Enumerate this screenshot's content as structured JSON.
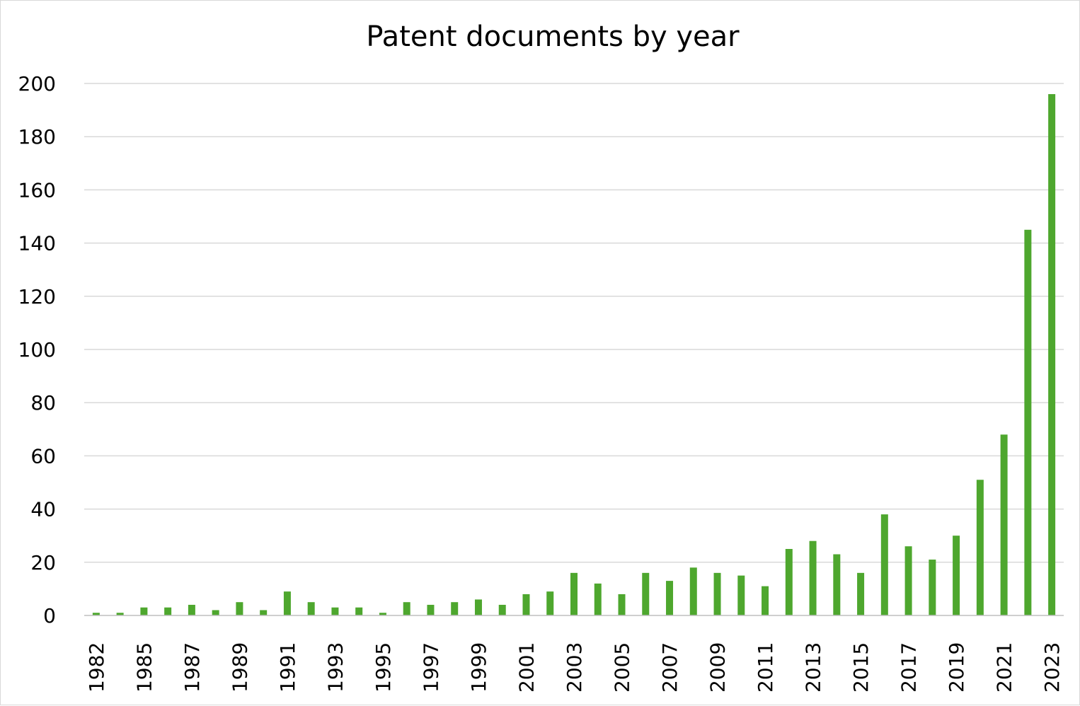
{
  "chart_data": {
    "type": "bar",
    "title": "Patent documents by year",
    "xlabel": "",
    "ylabel": "",
    "ylim": [
      0,
      200
    ],
    "y_ticks": [
      0,
      20,
      40,
      60,
      80,
      100,
      120,
      140,
      160,
      180,
      200
    ],
    "grid": true,
    "legend": "none",
    "bar_color": "#4ea72e",
    "categories": [
      "1982",
      "1984",
      "1985",
      "1986",
      "1987",
      "1988",
      "1989",
      "1990",
      "1991",
      "1992",
      "1993",
      "1994",
      "1995",
      "1996",
      "1997",
      "1998",
      "1999",
      "2000",
      "2001",
      "2002",
      "2003",
      "2004",
      "2005",
      "2006",
      "2007",
      "2008",
      "2009",
      "2010",
      "2011",
      "2012",
      "2013",
      "2014",
      "2015",
      "2016",
      "2017",
      "2018",
      "2019",
      "2020",
      "2021",
      "2022",
      "2023"
    ],
    "tick_labels": [
      "1982",
      "",
      "1985",
      "",
      "1987",
      "",
      "1989",
      "",
      "1991",
      "",
      "1993",
      "",
      "1995",
      "",
      "1997",
      "",
      "1999",
      "",
      "2001",
      "",
      "2003",
      "",
      "2005",
      "",
      "2007",
      "",
      "2009",
      "",
      "2011",
      "",
      "2013",
      "",
      "2015",
      "",
      "2017",
      "",
      "2019",
      "",
      "2021",
      "",
      "2023"
    ],
    "values": [
      1,
      1,
      3,
      3,
      4,
      2,
      5,
      2,
      9,
      5,
      3,
      3,
      1,
      5,
      4,
      5,
      6,
      4,
      8,
      9,
      16,
      12,
      8,
      16,
      13,
      18,
      16,
      15,
      11,
      25,
      28,
      23,
      16,
      38,
      26,
      21,
      30,
      51,
      68,
      145,
      196
    ]
  }
}
